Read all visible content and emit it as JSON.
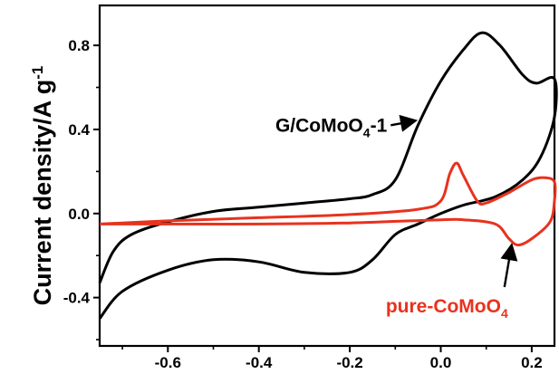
{
  "chart_data": {
    "type": "line",
    "title": "",
    "xlabel": "",
    "ylabel": {
      "main": "Current density/A g",
      "sup": "-1"
    },
    "xlim": [
      -0.75,
      0.25
    ],
    "ylim": [
      -0.63,
      0.99
    ],
    "x_ticks": [
      -0.6,
      -0.4,
      -0.2,
      0.0,
      0.2
    ],
    "x_tick_labels": [
      "-0.6",
      "-0.4",
      "-0.2",
      "0.0",
      "0.2"
    ],
    "y_ticks": [
      -0.4,
      0.0,
      0.4,
      0.8
    ],
    "y_tick_labels": [
      "-0.4",
      "0.0",
      "0.4",
      "0.8"
    ],
    "grid": false,
    "legend": "none",
    "series": [
      {
        "name": "G/CoMoO4-1",
        "color": "#000000",
        "points": [
          [
            -0.75,
            -0.33
          ],
          [
            -0.72,
            -0.18
          ],
          [
            -0.68,
            -0.1
          ],
          [
            -0.6,
            -0.04
          ],
          [
            -0.5,
            0.01
          ],
          [
            -0.4,
            0.03
          ],
          [
            -0.3,
            0.05
          ],
          [
            -0.2,
            0.07
          ],
          [
            -0.15,
            0.09
          ],
          [
            -0.1,
            0.16
          ],
          [
            -0.05,
            0.42
          ],
          [
            0.0,
            0.63
          ],
          [
            0.05,
            0.78
          ],
          [
            0.09,
            0.86
          ],
          [
            0.13,
            0.8
          ],
          [
            0.18,
            0.66
          ],
          [
            0.21,
            0.62
          ],
          [
            0.25,
            0.64
          ],
          [
            0.25,
            0.46
          ],
          [
            0.22,
            0.27
          ],
          [
            0.18,
            0.16
          ],
          [
            0.12,
            0.08
          ],
          [
            0.05,
            0.04
          ],
          [
            0.0,
            0.0
          ],
          [
            -0.05,
            -0.05
          ],
          [
            -0.1,
            -0.1
          ],
          [
            -0.15,
            -0.22
          ],
          [
            -0.2,
            -0.28
          ],
          [
            -0.3,
            -0.28
          ],
          [
            -0.4,
            -0.23
          ],
          [
            -0.5,
            -0.22
          ],
          [
            -0.6,
            -0.27
          ],
          [
            -0.7,
            -0.37
          ],
          [
            -0.75,
            -0.5
          ]
        ]
      },
      {
        "name": "pure-CoMoO4",
        "color": "#e8321e",
        "points": [
          [
            -0.75,
            -0.05
          ],
          [
            -0.6,
            -0.035
          ],
          [
            -0.4,
            -0.02
          ],
          [
            -0.2,
            -0.005
          ],
          [
            -0.05,
            0.02
          ],
          [
            0.0,
            0.06
          ],
          [
            0.02,
            0.19
          ],
          [
            0.035,
            0.24
          ],
          [
            0.05,
            0.18
          ],
          [
            0.08,
            0.06
          ],
          [
            0.1,
            0.05
          ],
          [
            0.15,
            0.1
          ],
          [
            0.2,
            0.16
          ],
          [
            0.23,
            0.17
          ],
          [
            0.25,
            0.15
          ],
          [
            0.25,
            0.06
          ],
          [
            0.24,
            -0.04
          ],
          [
            0.2,
            -0.12
          ],
          [
            0.17,
            -0.15
          ],
          [
            0.15,
            -0.12
          ],
          [
            0.12,
            -0.05
          ],
          [
            0.05,
            -0.03
          ],
          [
            0.0,
            -0.03
          ],
          [
            -0.2,
            -0.045
          ],
          [
            -0.4,
            -0.05
          ],
          [
            -0.6,
            -0.05
          ],
          [
            -0.75,
            -0.05
          ]
        ]
      }
    ],
    "annotations": [
      {
        "text": "G/CoMoO",
        "sub": "4",
        "tail": "-1",
        "color": "#000000",
        "arrow_from": [
          -0.11,
          0.42
        ],
        "arrow_to": [
          -0.06,
          0.44
        ]
      },
      {
        "text": "pure-CoMoO",
        "sub": "4",
        "tail": "",
        "color": "#e8321e",
        "arrow_from": [
          0.14,
          -0.35
        ],
        "arrow_to": [
          0.155,
          -0.16
        ]
      }
    ]
  }
}
